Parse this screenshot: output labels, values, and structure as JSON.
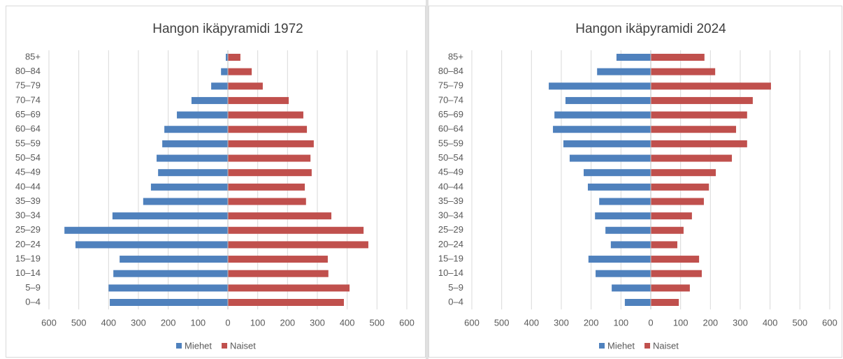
{
  "chart_data": [
    {
      "type": "bar",
      "orientation": "horizontal",
      "title": "Hangon ikäpyramidi 1972",
      "categories": [
        "0–4",
        "5–9",
        "10–14",
        "15–19",
        "20–24",
        "25–29",
        "30–34",
        "35–39",
        "40–44",
        "45–49",
        "50–54",
        "55–59",
        "60–64",
        "65–69",
        "70–74",
        "75–79",
        "80–84",
        "85+"
      ],
      "series": [
        {
          "name": "Miehet",
          "color": "#4f81bd",
          "values": [
            -396,
            -400,
            -384,
            -363,
            -511,
            -548,
            -387,
            -284,
            -258,
            -234,
            -239,
            -220,
            -213,
            -171,
            -122,
            -56,
            -23,
            -7
          ]
        },
        {
          "name": "Naiset",
          "color": "#c0504d",
          "values": [
            389,
            408,
            337,
            335,
            471,
            455,
            347,
            262,
            258,
            281,
            277,
            288,
            265,
            253,
            204,
            117,
            80,
            42
          ]
        }
      ],
      "xlim": [
        -600,
        600
      ],
      "xticks": [
        {
          "value": -600,
          "label": "600"
        },
        {
          "value": -500,
          "label": "500"
        },
        {
          "value": -400,
          "label": "400"
        },
        {
          "value": -300,
          "label": "300"
        },
        {
          "value": -200,
          "label": "200"
        },
        {
          "value": -100,
          "label": "100"
        },
        0,
        100,
        200,
        300,
        400,
        500,
        600
      ],
      "grid": true,
      "legend": "bottom"
    },
    {
      "type": "bar",
      "orientation": "horizontal",
      "title": "Hangon ikäpyramidi 2024",
      "categories": [
        "0–4",
        "5–9",
        "10–14",
        "15–19",
        "20–24",
        "25–29",
        "30–34",
        "35–39",
        "40–44",
        "45–49",
        "50–54",
        "55–59",
        "60–64",
        "65–69",
        "70–74",
        "75–79",
        "80–84",
        "85+"
      ],
      "series": [
        {
          "name": "Miehet",
          "color": "#4f81bd",
          "values": [
            -87,
            -131,
            -185,
            -209,
            -134,
            -152,
            -187,
            -173,
            -211,
            -225,
            -272,
            -293,
            -328,
            -323,
            -286,
            -342,
            -180,
            -115
          ]
        },
        {
          "name": "Naiset",
          "color": "#c0504d",
          "values": [
            94,
            131,
            171,
            162,
            89,
            110,
            138,
            178,
            195,
            218,
            272,
            323,
            286,
            323,
            342,
            403,
            216,
            180
          ]
        }
      ],
      "xlim": [
        -600,
        600
      ],
      "xticks": [
        {
          "value": -600,
          "label": "600"
        },
        {
          "value": -500,
          "label": "500"
        },
        {
          "value": -400,
          "label": "400"
        },
        {
          "value": -300,
          "label": "300"
        },
        {
          "value": -200,
          "label": "200"
        },
        {
          "value": -100,
          "label": "100"
        },
        0,
        100,
        200,
        300,
        400,
        500,
        600
      ],
      "grid": true,
      "legend": "bottom"
    }
  ]
}
